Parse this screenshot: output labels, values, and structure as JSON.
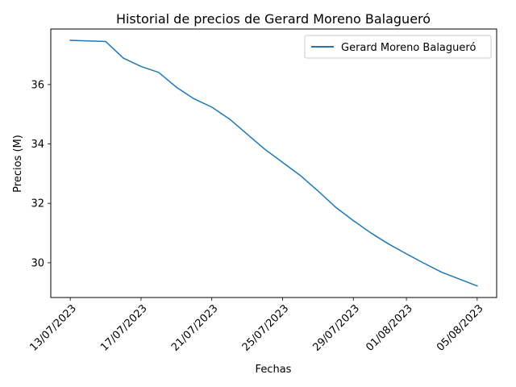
{
  "chart_data": {
    "type": "line",
    "title": "Historial de precios de Gerard Moreno Balagueró",
    "xlabel": "Fechas",
    "ylabel": "Precios (M)",
    "x_tick_labels": [
      "13/07/2023",
      "17/07/2023",
      "21/07/2023",
      "25/07/2023",
      "29/07/2023",
      "01/08/2023",
      "05/08/2023"
    ],
    "x_tick_dates": [
      "2023-07-13",
      "2023-07-17",
      "2023-07-21",
      "2023-07-25",
      "2023-07-29",
      "2023-08-01",
      "2023-08-05"
    ],
    "y_ticks": [
      30,
      32,
      34,
      36
    ],
    "xlim": [
      "2023-07-11 21:36",
      "2023-08-06 02:24"
    ],
    "ylim": [
      28.83,
      37.87
    ],
    "grid": false,
    "legend_position": "top-right",
    "series": [
      {
        "name": "Gerard Moreno Balagueró",
        "color": "#1f77b4",
        "x": [
          "2023-07-13",
          "2023-07-14",
          "2023-07-15",
          "2023-07-16",
          "2023-07-17",
          "2023-07-18",
          "2023-07-19",
          "2023-07-20",
          "2023-07-21",
          "2023-07-22",
          "2023-07-23",
          "2023-07-24",
          "2023-07-25",
          "2023-07-26",
          "2023-07-27",
          "2023-07-28",
          "2023-07-29",
          "2023-07-30",
          "2023-07-31",
          "2023-08-01",
          "2023-08-02",
          "2023-08-03",
          "2023-08-04",
          "2023-08-05"
        ],
        "y": [
          37.49,
          37.47,
          37.45,
          36.89,
          36.61,
          36.41,
          35.91,
          35.52,
          35.24,
          34.84,
          34.33,
          33.82,
          33.38,
          32.94,
          32.42,
          31.87,
          31.42,
          31.0,
          30.63,
          30.3,
          29.98,
          29.68,
          29.45,
          29.22
        ]
      }
    ]
  }
}
